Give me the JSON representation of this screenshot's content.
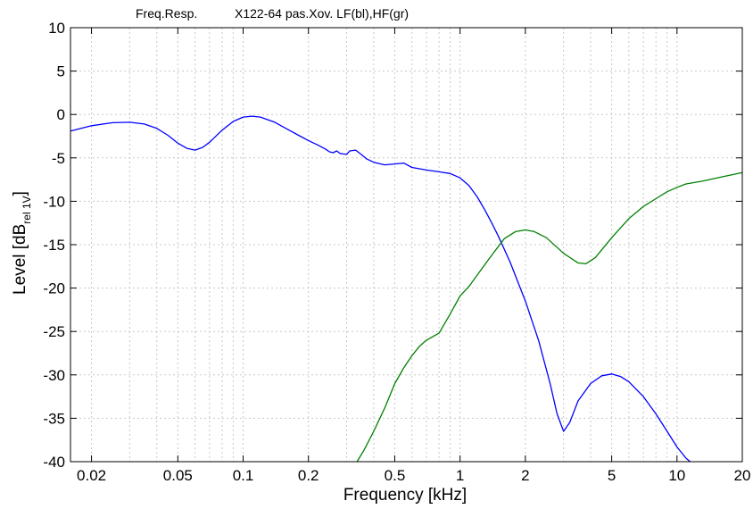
{
  "chart_data": {
    "type": "line",
    "title_left": "Freq.Resp.",
    "title_right": "X122-64 pas.Xov. LF(bl),HF(gr)",
    "xlabel": "Frequency [kHz]",
    "ylabel_main": "Level [dB",
    "ylabel_sub": "rel 1V",
    "ylabel_close": "]",
    "xscale": "log",
    "xlim": [
      0.016,
      20
    ],
    "ylim": [
      -40,
      10
    ],
    "grid": true,
    "x_ticks": [
      {
        "v": 0.02,
        "label": "0.02"
      },
      {
        "v": 0.05,
        "label": "0.05"
      },
      {
        "v": 0.1,
        "label": "0.1"
      },
      {
        "v": 0.2,
        "label": "0.2"
      },
      {
        "v": 0.5,
        "label": "0.5"
      },
      {
        "v": 1,
        "label": "1"
      },
      {
        "v": 2,
        "label": "2"
      },
      {
        "v": 5,
        "label": "5"
      },
      {
        "v": 10,
        "label": "10"
      },
      {
        "v": 20,
        "label": "20"
      }
    ],
    "y_ticks": [
      {
        "v": 10,
        "label": "10"
      },
      {
        "v": 5,
        "label": "5"
      },
      {
        "v": 0,
        "label": "0"
      },
      {
        "v": -5,
        "label": "-5"
      },
      {
        "v": -10,
        "label": "-10"
      },
      {
        "v": -15,
        "label": "-15"
      },
      {
        "v": -20,
        "label": "-20"
      },
      {
        "v": -25,
        "label": "-25"
      },
      {
        "v": -30,
        "label": "-30"
      },
      {
        "v": -35,
        "label": "-35"
      },
      {
        "v": -40,
        "label": "-40"
      }
    ],
    "series": [
      {
        "color": "#0000ff",
        "points": [
          [
            0.016,
            -1.9
          ],
          [
            0.02,
            -1.3
          ],
          [
            0.025,
            -0.95
          ],
          [
            0.03,
            -0.9
          ],
          [
            0.035,
            -1.1
          ],
          [
            0.04,
            -1.6
          ],
          [
            0.045,
            -2.4
          ],
          [
            0.05,
            -3.3
          ],
          [
            0.055,
            -3.9
          ],
          [
            0.06,
            -4.1
          ],
          [
            0.065,
            -3.8
          ],
          [
            0.07,
            -3.2
          ],
          [
            0.08,
            -1.8
          ],
          [
            0.09,
            -0.8
          ],
          [
            0.1,
            -0.3
          ],
          [
            0.11,
            -0.2
          ],
          [
            0.12,
            -0.3
          ],
          [
            0.14,
            -0.9
          ],
          [
            0.16,
            -1.7
          ],
          [
            0.18,
            -2.4
          ],
          [
            0.2,
            -3.0
          ],
          [
            0.22,
            -3.5
          ],
          [
            0.24,
            -4.0
          ],
          [
            0.25,
            -4.3
          ],
          [
            0.26,
            -4.4
          ],
          [
            0.27,
            -4.2
          ],
          [
            0.28,
            -4.5
          ],
          [
            0.3,
            -4.6
          ],
          [
            0.31,
            -4.2
          ],
          [
            0.33,
            -4.1
          ],
          [
            0.35,
            -4.6
          ],
          [
            0.37,
            -5.1
          ],
          [
            0.4,
            -5.5
          ],
          [
            0.45,
            -5.8
          ],
          [
            0.5,
            -5.7
          ],
          [
            0.55,
            -5.6
          ],
          [
            0.6,
            -6.1
          ],
          [
            0.7,
            -6.4
          ],
          [
            0.8,
            -6.6
          ],
          [
            0.9,
            -6.8
          ],
          [
            1.0,
            -7.3
          ],
          [
            1.1,
            -8.2
          ],
          [
            1.2,
            -9.5
          ],
          [
            1.3,
            -11.0
          ],
          [
            1.4,
            -12.5
          ],
          [
            1.5,
            -14.0
          ],
          [
            1.7,
            -17.0
          ],
          [
            2.0,
            -21.5
          ],
          [
            2.3,
            -26.0
          ],
          [
            2.6,
            -31.0
          ],
          [
            2.8,
            -34.5
          ],
          [
            3.0,
            -36.5
          ],
          [
            3.2,
            -35.5
          ],
          [
            3.5,
            -33.0
          ],
          [
            4.0,
            -31.0
          ],
          [
            4.5,
            -30.1
          ],
          [
            5.0,
            -29.9
          ],
          [
            5.5,
            -30.2
          ],
          [
            6.0,
            -30.8
          ],
          [
            7.0,
            -32.5
          ],
          [
            8.0,
            -34.5
          ],
          [
            9.0,
            -36.5
          ],
          [
            10.0,
            -38.3
          ],
          [
            11.0,
            -39.6
          ],
          [
            11.5,
            -40
          ]
        ]
      },
      {
        "color": "#008000",
        "points": [
          [
            0.335,
            -40
          ],
          [
            0.36,
            -38.7
          ],
          [
            0.4,
            -36.5
          ],
          [
            0.45,
            -33.8
          ],
          [
            0.5,
            -31.0
          ],
          [
            0.55,
            -29.2
          ],
          [
            0.6,
            -27.8
          ],
          [
            0.65,
            -26.7
          ],
          [
            0.7,
            -26.0
          ],
          [
            0.8,
            -25.2
          ],
          [
            0.9,
            -23.0
          ],
          [
            1.0,
            -20.9
          ],
          [
            1.1,
            -19.8
          ],
          [
            1.2,
            -18.5
          ],
          [
            1.4,
            -16.2
          ],
          [
            1.6,
            -14.3
          ],
          [
            1.8,
            -13.5
          ],
          [
            2.0,
            -13.3
          ],
          [
            2.2,
            -13.5
          ],
          [
            2.5,
            -14.2
          ],
          [
            3.0,
            -16.0
          ],
          [
            3.5,
            -17.1
          ],
          [
            3.8,
            -17.2
          ],
          [
            4.2,
            -16.5
          ],
          [
            5.0,
            -14.2
          ],
          [
            6.0,
            -12.0
          ],
          [
            7.0,
            -10.6
          ],
          [
            8.0,
            -9.7
          ],
          [
            9.0,
            -8.9
          ],
          [
            10.0,
            -8.4
          ],
          [
            11.0,
            -8.0
          ],
          [
            13.0,
            -7.7
          ],
          [
            16.0,
            -7.2
          ],
          [
            20.0,
            -6.7
          ]
        ]
      }
    ]
  }
}
